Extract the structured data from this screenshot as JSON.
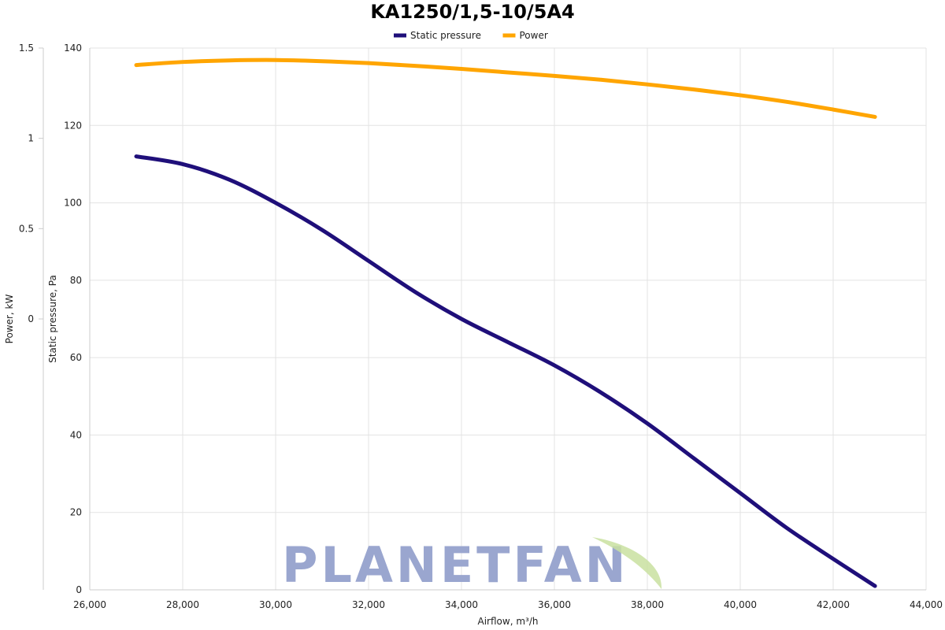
{
  "chart_data": {
    "type": "line",
    "title": "KA1250/1,5-10/5A4",
    "xlabel": "Airflow, m³/h",
    "ylabel": "Static pressure, Pa",
    "y2label": "Power, kW",
    "xlim": [
      26000,
      44000
    ],
    "ylim": [
      0,
      140
    ],
    "y2lim": [
      -1.5,
      1.5
    ],
    "x_ticks": [
      "26,000",
      "28,000",
      "30,000",
      "32,000",
      "34,000",
      "36,000",
      "38,000",
      "40,000",
      "42,000",
      "44,000"
    ],
    "y_ticks": [
      "0",
      "20",
      "40",
      "60",
      "80",
      "100",
      "120",
      "140"
    ],
    "y2_ticks": [
      "0",
      "0.5",
      "1",
      "1.5"
    ],
    "grid": true,
    "legend_position": "top-center",
    "series": [
      {
        "name": "Static pressure",
        "color": "#1f0f7a",
        "x": [
          27000,
          28000,
          29000,
          30000,
          31000,
          32000,
          33000,
          34000,
          35000,
          36000,
          37000,
          38000,
          39000,
          40000,
          41000,
          42000,
          42900
        ],
        "values": [
          112,
          110,
          106,
          100,
          93,
          85,
          77,
          70,
          64,
          58,
          51,
          43,
          34,
          25,
          16,
          8,
          1
        ]
      },
      {
        "name": "Power",
        "color": "#ffa500",
        "x": [
          27000,
          28000,
          29000,
          30000,
          31000,
          32000,
          33000,
          34000,
          35000,
          36000,
          37000,
          38000,
          39000,
          40000,
          41000,
          42000,
          42900
        ],
        "values": [
          135.6,
          136.4,
          136.8,
          136.9,
          136.6,
          136.1,
          135.4,
          134.6,
          133.7,
          132.8,
          131.8,
          130.6,
          129.3,
          127.8,
          126.1,
          124.1,
          122.2
        ]
      }
    ]
  },
  "watermark": {
    "text": "PLANETFAN",
    "text_color": "#9aa6cf",
    "leaf_color": "#c9e0a0"
  }
}
